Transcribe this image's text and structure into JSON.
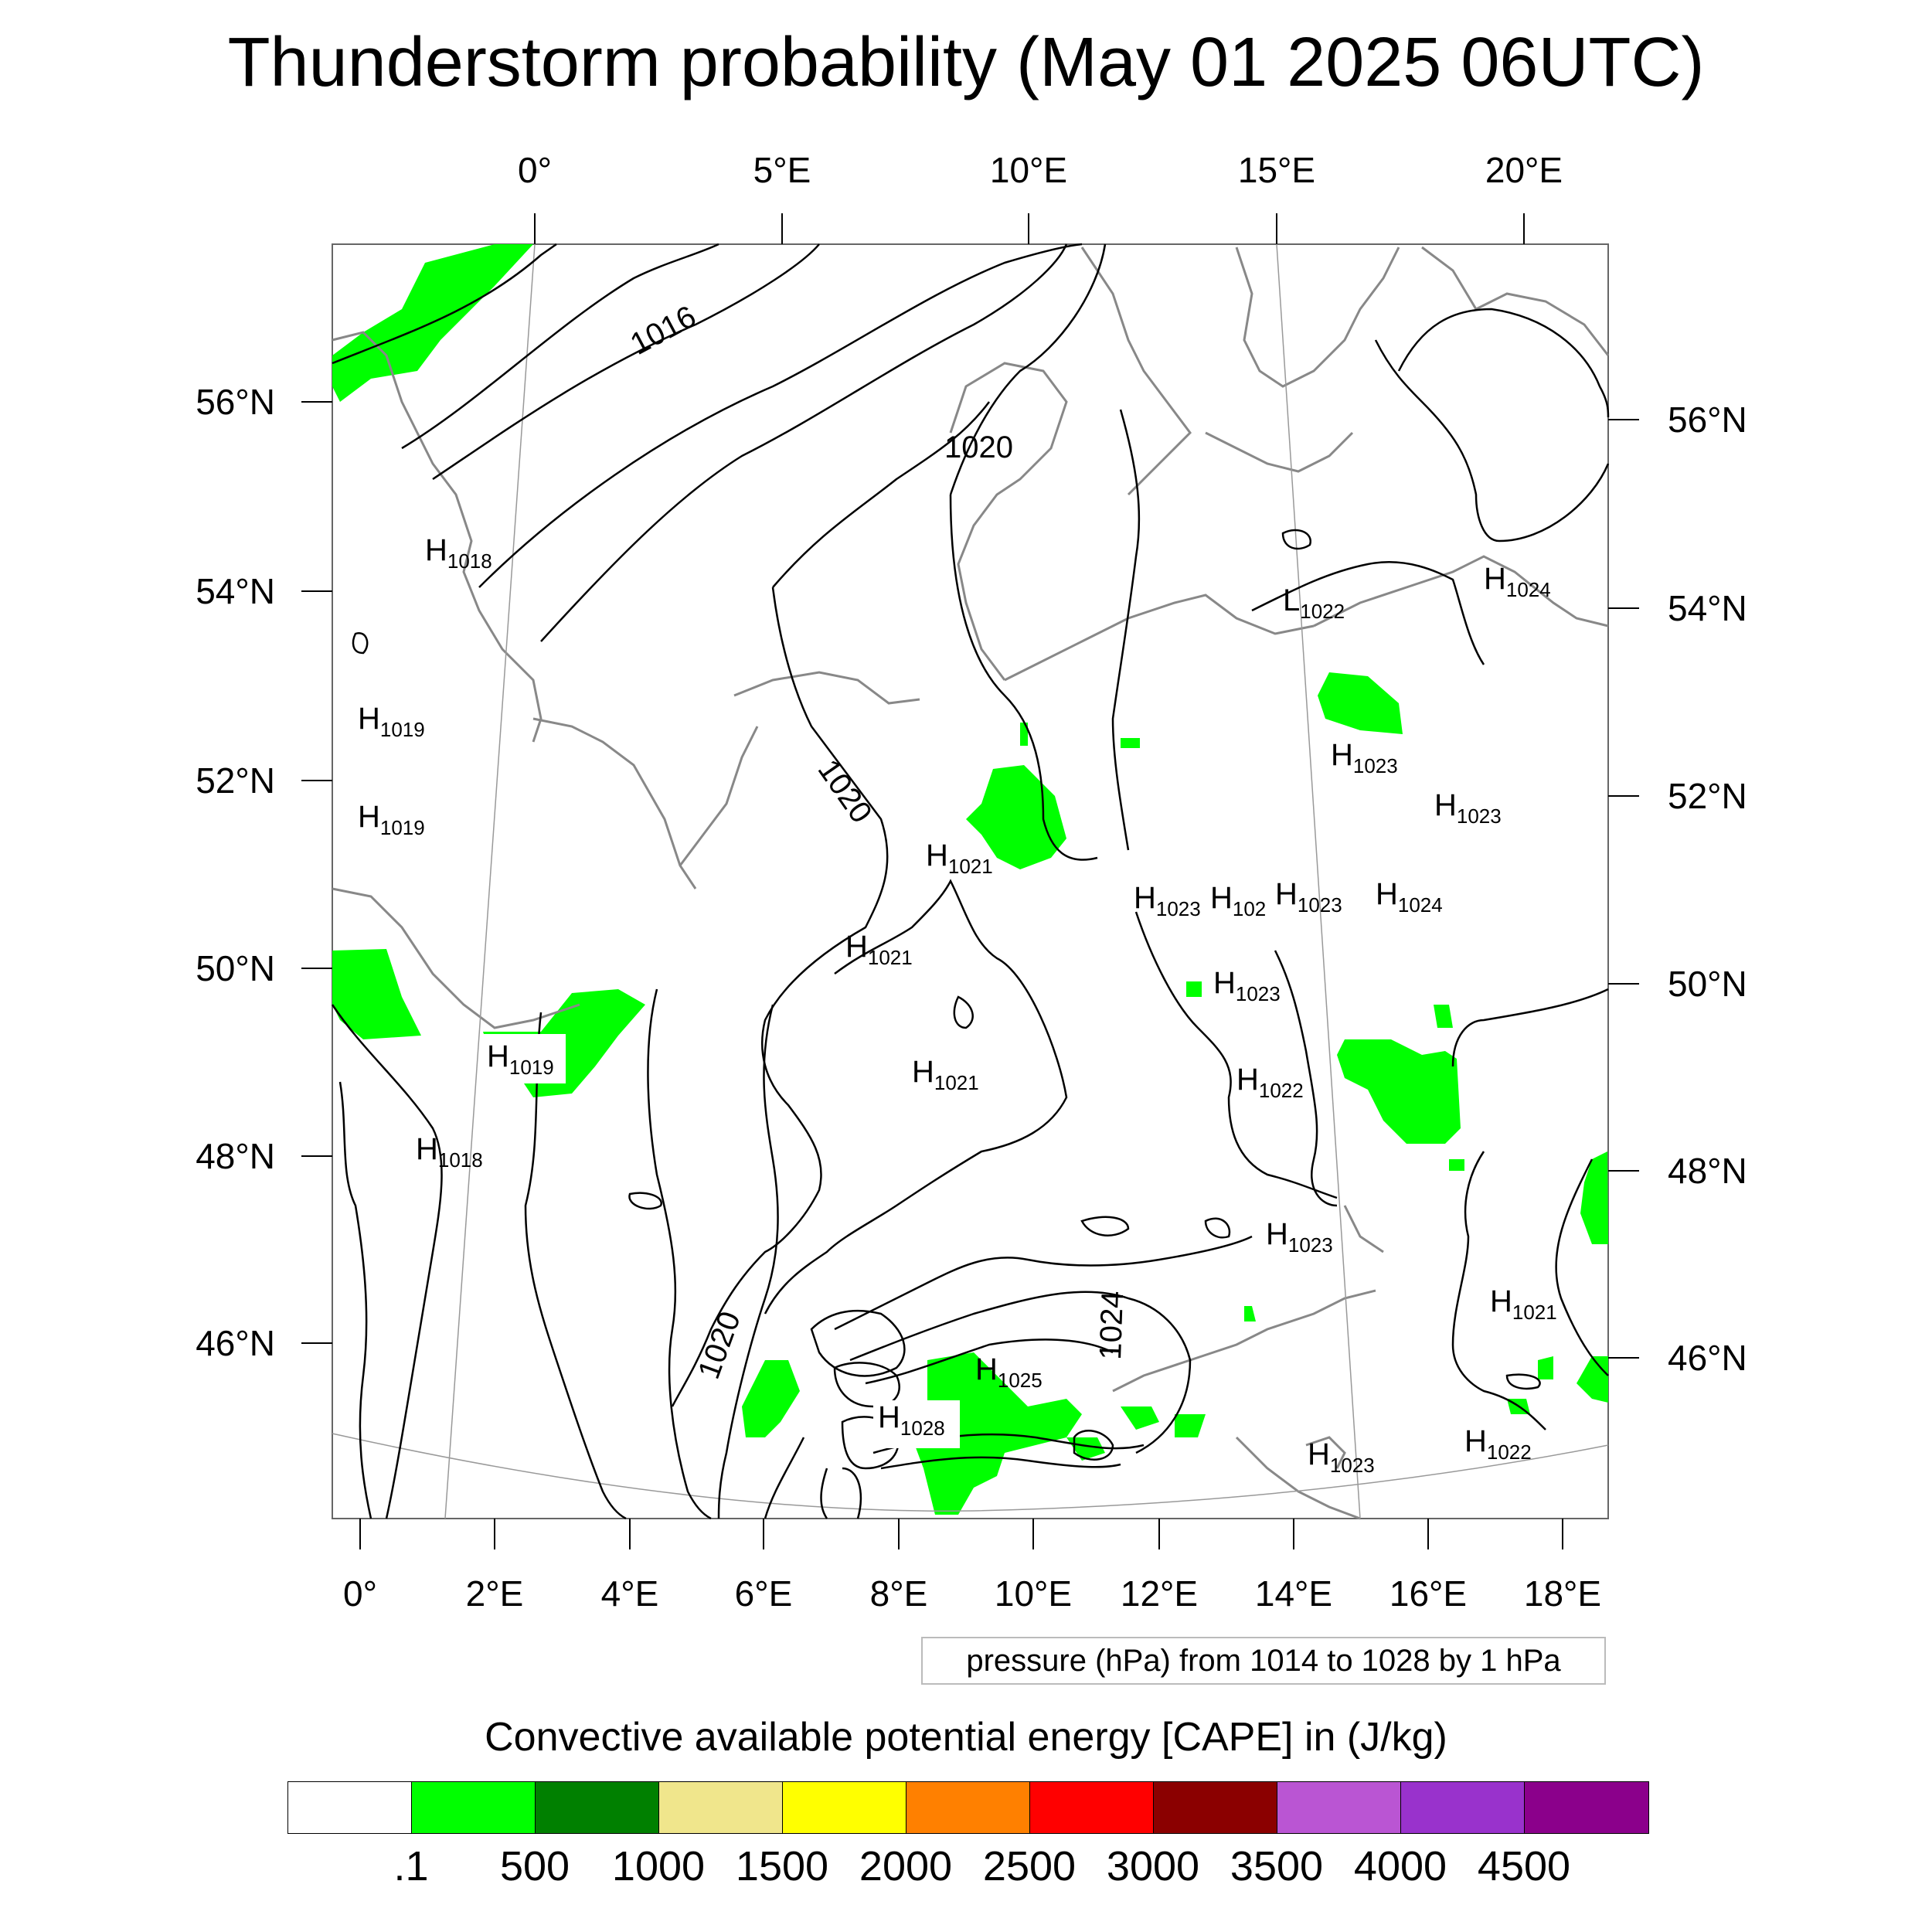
{
  "title": "Thunderstorm probability (May 01 2025 06UTC)",
  "map": {
    "top_lon_ticks": [
      "0°",
      "5°E",
      "10°E",
      "15°E",
      "20°E"
    ],
    "bottom_lon_ticks": [
      "0°",
      "2°E",
      "4°E",
      "6°E",
      "8°E",
      "10°E",
      "12°E",
      "14°E",
      "16°E",
      "18°E"
    ],
    "left_lat_ticks": [
      "56°N",
      "54°N",
      "52°N",
      "50°N",
      "48°N",
      "46°N"
    ],
    "right_lat_ticks": [
      "56°N",
      "54°N",
      "52°N",
      "50°N",
      "48°N",
      "46°N"
    ],
    "contour_labels": [
      "1016",
      "1020",
      "1020",
      "1020",
      "1024"
    ],
    "pressure_centers": [
      {
        "letter": "H",
        "value": "1018"
      },
      {
        "letter": "H",
        "value": "1019"
      },
      {
        "letter": "H",
        "value": "1019"
      },
      {
        "letter": "H",
        "value": "1019"
      },
      {
        "letter": "H",
        "value": "1018"
      },
      {
        "letter": "H",
        "value": "1021"
      },
      {
        "letter": "H",
        "value": "1021"
      },
      {
        "letter": "H",
        "value": "1021"
      },
      {
        "letter": "H",
        "value": "1025"
      },
      {
        "letter": "H",
        "value": "1028"
      },
      {
        "letter": "H",
        "value": "1023"
      },
      {
        "letter": "H",
        "value": "102"
      },
      {
        "letter": "H",
        "value": "1023"
      },
      {
        "letter": "H",
        "value": "1024"
      },
      {
        "letter": "H",
        "value": "1023"
      },
      {
        "letter": "H",
        "value": "1022"
      },
      {
        "letter": "H",
        "value": "1023"
      },
      {
        "letter": "L",
        "value": "1022"
      },
      {
        "letter": "H",
        "value": "1024"
      },
      {
        "letter": "H",
        "value": "1023"
      },
      {
        "letter": "H",
        "value": "1023"
      },
      {
        "letter": "H",
        "value": "1021"
      },
      {
        "letter": "H",
        "value": "1022"
      },
      {
        "letter": "H",
        "value": "1023"
      }
    ],
    "colors": {
      "cape_fill": "#00ff00",
      "coast": "#888888",
      "contour": "#000000"
    }
  },
  "info_box": "pressure (hPa) from 1014 to 1028 by 1 hPa",
  "legend": {
    "title": "Convective available potential energy [CAPE] in (J/kg)",
    "colors": [
      "#ffffff",
      "#00ff00",
      "#008000",
      "#f0e68c",
      "#ffff00",
      "#ff8000",
      "#ff0000",
      "#8b0000",
      "#ba55d3",
      "#9932cc",
      "#8b008b"
    ],
    "labels": [
      ".1",
      "500",
      "1000",
      "1500",
      "2000",
      "2500",
      "3000",
      "3500",
      "4000",
      "4500"
    ]
  }
}
